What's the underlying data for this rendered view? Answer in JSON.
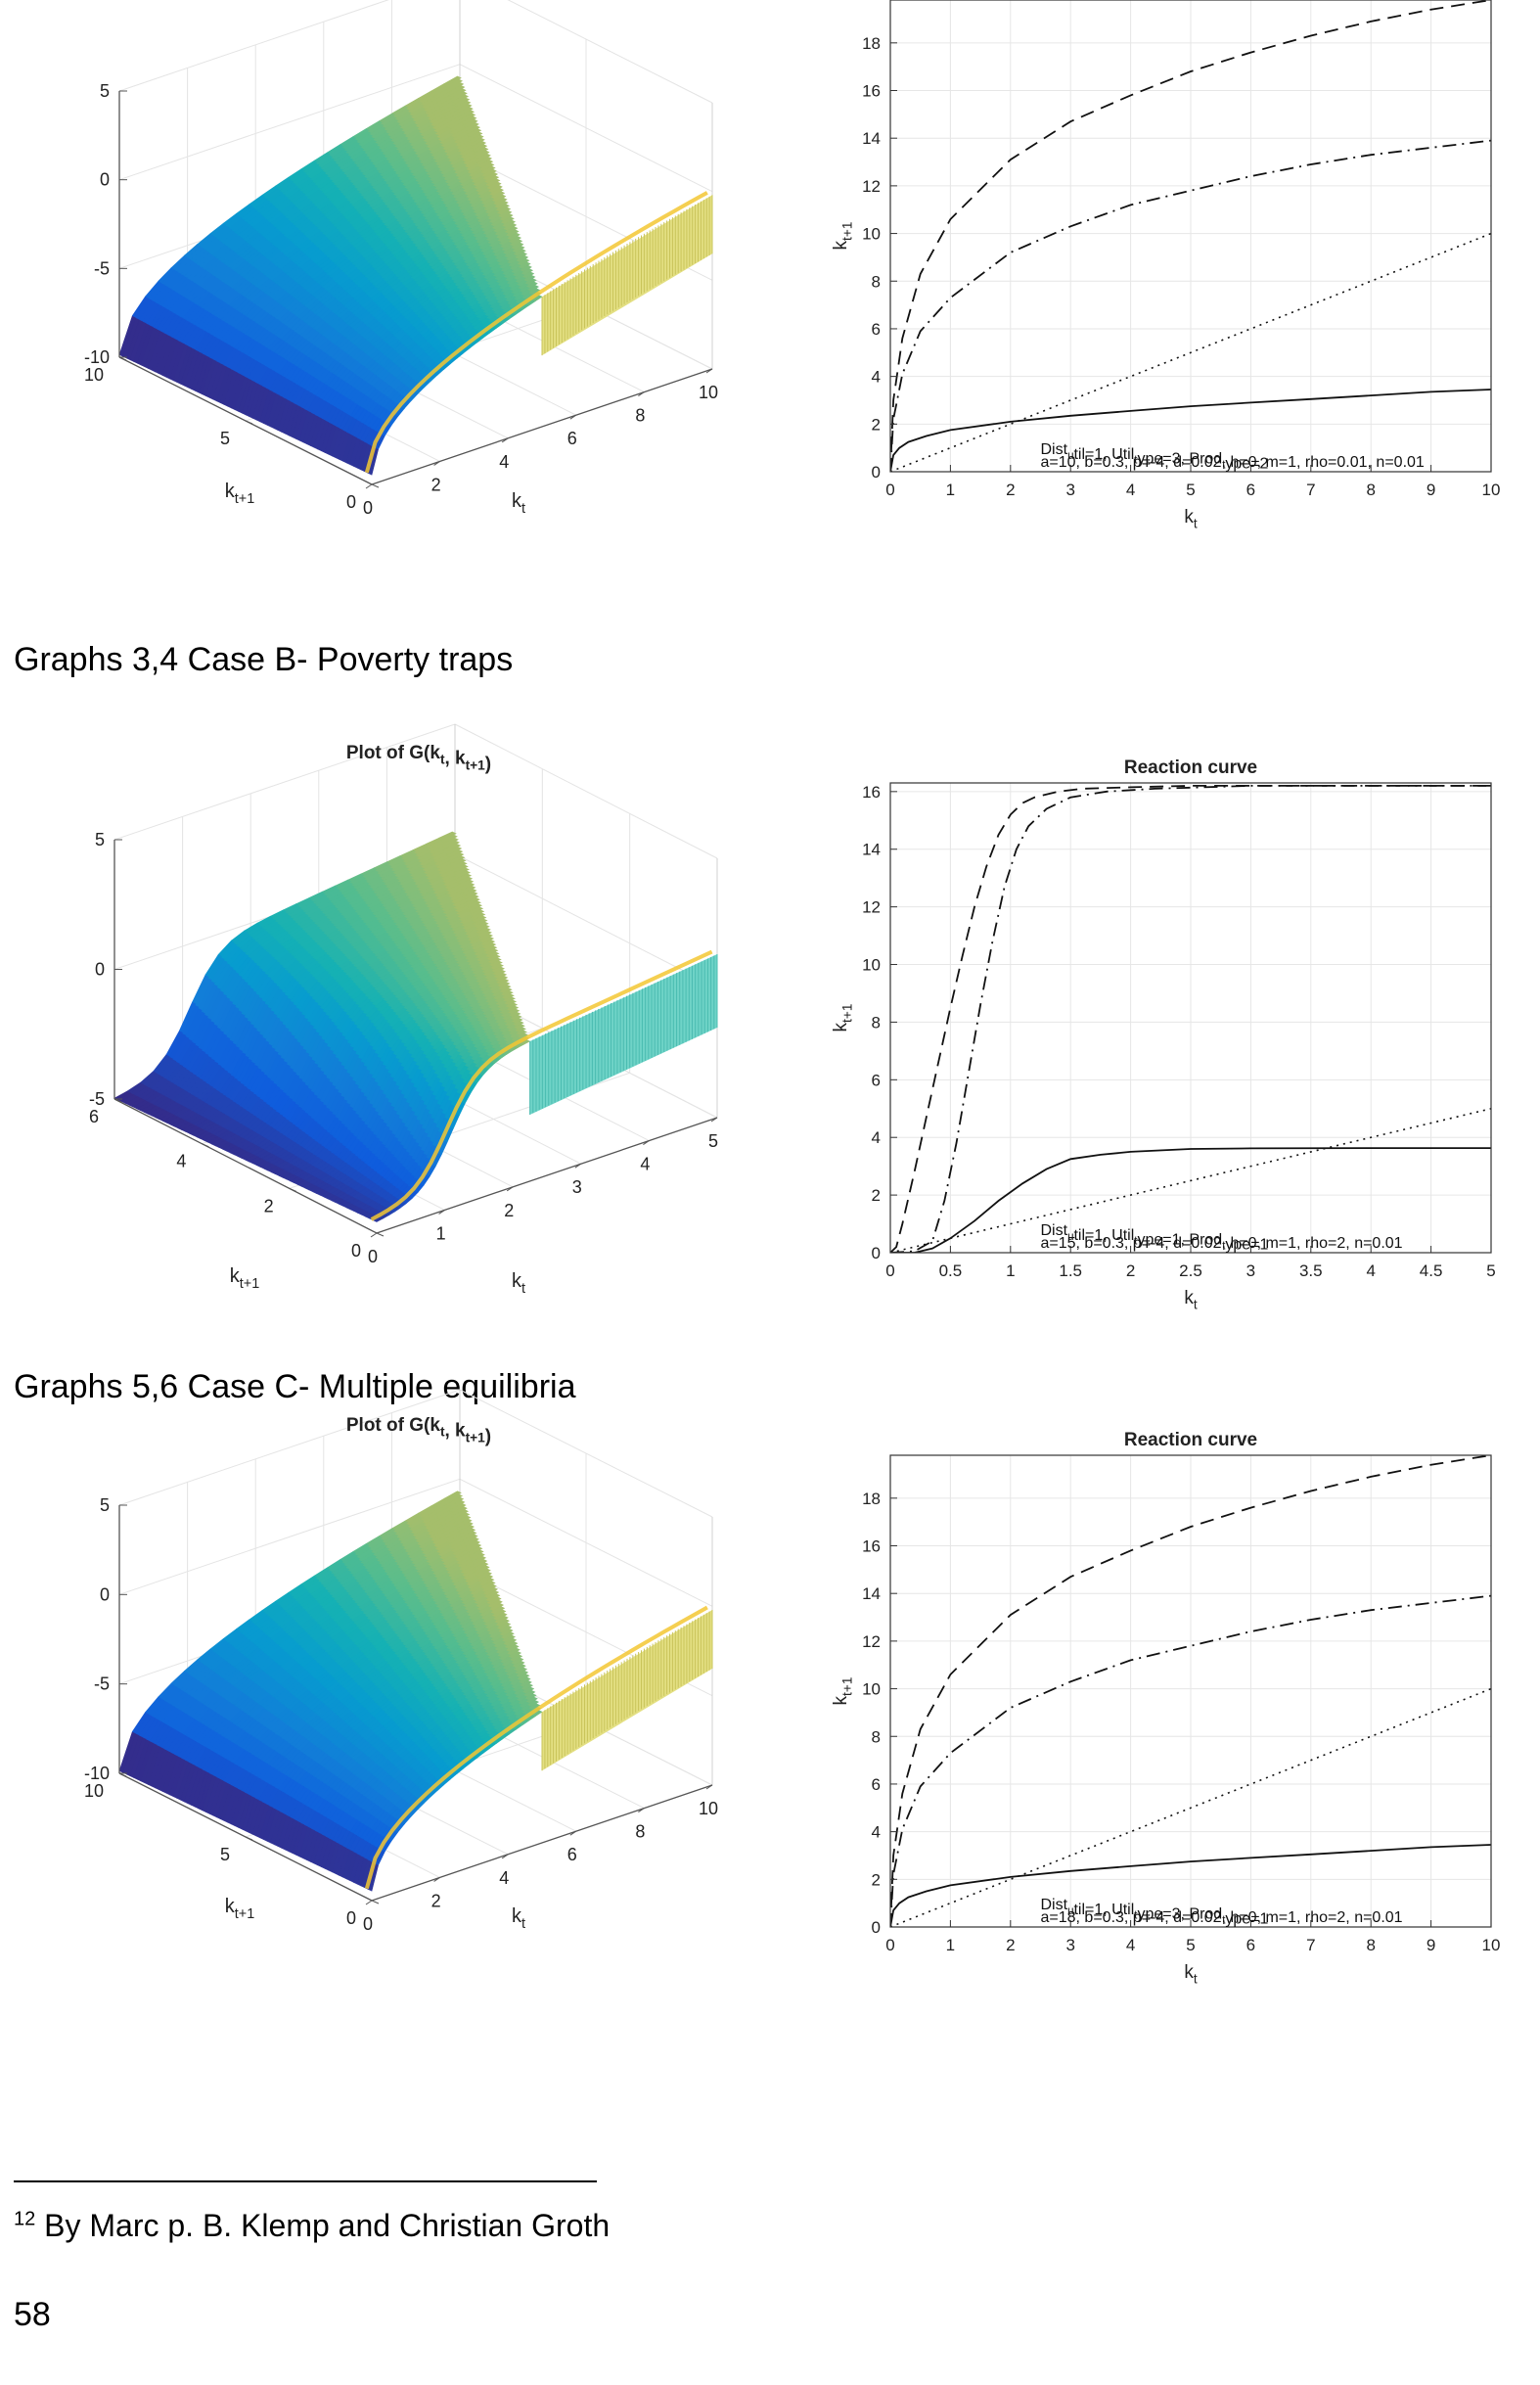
{
  "captions": {
    "case_b": "Graphs 3,4 Case B- Poverty traps",
    "case_c": "Graphs 5,6 Case C- Multiple equilibria"
  },
  "footnote": {
    "number": "12",
    "text": " By Marc p. B. Klemp and Christian Groth"
  },
  "page_number": "58",
  "chart_data": [
    {
      "id": "g1",
      "type": "surface",
      "title": "",
      "xlabel": "k_t",
      "ylabel": "k_{t+1}",
      "zlabel": "",
      "x_ticks": [
        "0",
        "2",
        "4",
        "6",
        "8",
        "10"
      ],
      "y_ticks": [
        "0",
        "5",
        "10"
      ],
      "z_ticks": [
        "-10",
        "-5",
        "0",
        "5"
      ],
      "x_range": [
        0,
        10
      ],
      "y_range": [
        0,
        10
      ],
      "z_range": [
        -10,
        5
      ],
      "colormap": "parula"
    },
    {
      "id": "r1",
      "type": "line",
      "title": "",
      "xlabel": "k_t",
      "ylabel": "k_{t+1}",
      "xlim": [
        0,
        10
      ],
      "ylim": [
        0,
        19.8
      ],
      "x_ticks": [
        "0",
        "1",
        "2",
        "3",
        "4",
        "5",
        "6",
        "7",
        "8",
        "9",
        "10"
      ],
      "y_ticks": [
        "0",
        "2",
        "4",
        "6",
        "8",
        "10",
        "12",
        "14",
        "16",
        "18"
      ],
      "annotation": [
        "Dist_util=1, Util_type=3, Prod_type=2",
        "a=10, b=0.3, p=-4, d=0.02, h=0, m=1, rho=0.01, n=0.01"
      ],
      "series": [
        {
          "style": "dashed",
          "x": [
            0,
            0.05,
            0.2,
            0.5,
            1,
            2,
            3,
            4,
            5,
            6,
            7,
            8,
            9,
            10
          ],
          "y": [
            0,
            3.0,
            5.6,
            8.3,
            10.6,
            13.1,
            14.7,
            15.8,
            16.8,
            17.6,
            18.3,
            18.9,
            19.4,
            19.8
          ]
        },
        {
          "style": "dashdot",
          "x": [
            0,
            0.05,
            0.2,
            0.5,
            1,
            2,
            3,
            4,
            5,
            6,
            7,
            8,
            9,
            10
          ],
          "y": [
            0,
            2.2,
            4.1,
            5.9,
            7.3,
            9.2,
            10.3,
            11.2,
            11.8,
            12.4,
            12.9,
            13.3,
            13.6,
            13.9
          ]
        },
        {
          "style": "dotted",
          "x": [
            0,
            10
          ],
          "y": [
            0,
            10
          ]
        },
        {
          "style": "solid",
          "x": [
            0,
            0.05,
            0.15,
            0.3,
            0.6,
            1,
            2,
            3,
            4,
            5,
            6,
            7,
            8,
            9,
            10
          ],
          "y": [
            0,
            0.7,
            1.0,
            1.25,
            1.5,
            1.75,
            2.1,
            2.35,
            2.55,
            2.75,
            2.9,
            3.05,
            3.2,
            3.35,
            3.45
          ]
        }
      ]
    },
    {
      "id": "g2",
      "type": "surface",
      "title": "Plot of G(k_t, k_{t+1})",
      "xlabel": "k_t",
      "ylabel": "k_{t+1}",
      "zlabel": "",
      "x_ticks": [
        "0",
        "1",
        "2",
        "3",
        "4",
        "5"
      ],
      "y_ticks": [
        "0",
        "2",
        "4",
        "6"
      ],
      "z_ticks": [
        "-5",
        "0",
        "5"
      ],
      "x_range": [
        0,
        5
      ],
      "y_range": [
        0,
        6
      ],
      "z_range": [
        -5,
        5
      ],
      "colormap": "parula"
    },
    {
      "id": "r2",
      "type": "line",
      "title": "Reaction curve",
      "xlabel": "k_t",
      "ylabel": "k_{t+1}",
      "xlim": [
        0,
        5
      ],
      "ylim": [
        0,
        16.3
      ],
      "x_ticks": [
        "0",
        "0.5",
        "1",
        "1.5",
        "2",
        "2.5",
        "3",
        "3.5",
        "4",
        "4.5",
        "5"
      ],
      "y_ticks": [
        "0",
        "2",
        "4",
        "6",
        "8",
        "10",
        "12",
        "14",
        "16"
      ],
      "annotation": [
        "Dist_util=1, Util_type=1, Prod_type=1",
        "a=15, b=0.3, p=-4, d=0.02, h=0, m=1, rho=2, n=0.01"
      ],
      "series": [
        {
          "style": "dashed",
          "x": [
            0,
            0.05,
            0.1,
            0.2,
            0.3,
            0.4,
            0.5,
            0.6,
            0.7,
            0.8,
            0.9,
            1.0,
            1.1,
            1.2,
            1.4,
            1.6,
            2,
            2.5,
            3,
            4,
            5
          ],
          "y": [
            0,
            0.2,
            1.0,
            2.8,
            4.7,
            6.6,
            8.5,
            10.3,
            12.0,
            13.4,
            14.5,
            15.2,
            15.6,
            15.8,
            16.0,
            16.1,
            16.15,
            16.2,
            16.2,
            16.2,
            16.2
          ]
        },
        {
          "style": "dashdot",
          "x": [
            0,
            0.2,
            0.35,
            0.45,
            0.55,
            0.65,
            0.75,
            0.85,
            0.95,
            1.05,
            1.15,
            1.3,
            1.5,
            1.8,
            2.2,
            3,
            4,
            5
          ],
          "y": [
            0,
            0.05,
            0.4,
            1.8,
            3.8,
            6.2,
            8.6,
            10.8,
            12.7,
            14.0,
            14.8,
            15.4,
            15.8,
            16.0,
            16.1,
            16.2,
            16.2,
            16.2
          ]
        },
        {
          "style": "dotted",
          "x": [
            0,
            5
          ],
          "y": [
            0,
            5
          ]
        },
        {
          "style": "solid",
          "x": [
            0,
            0.2,
            0.35,
            0.5,
            0.7,
            0.9,
            1.1,
            1.3,
            1.5,
            1.75,
            2,
            2.5,
            3,
            4,
            5
          ],
          "y": [
            0,
            0.0,
            0.15,
            0.5,
            1.1,
            1.8,
            2.4,
            2.9,
            3.25,
            3.4,
            3.5,
            3.6,
            3.62,
            3.63,
            3.63
          ]
        }
      ]
    },
    {
      "id": "g3",
      "type": "surface",
      "title": "Plot of G(k_t, k_{t+1})",
      "xlabel": "k_t",
      "ylabel": "k_{t+1}",
      "zlabel": "",
      "x_ticks": [
        "0",
        "2",
        "4",
        "6",
        "8",
        "10"
      ],
      "y_ticks": [
        "0",
        "5",
        "10"
      ],
      "z_ticks": [
        "-10",
        "-5",
        "0",
        "5"
      ],
      "x_range": [
        0,
        10
      ],
      "y_range": [
        0,
        10
      ],
      "z_range": [
        -10,
        5
      ],
      "colormap": "parula"
    },
    {
      "id": "r3",
      "type": "line",
      "title": "Reaction curve",
      "xlabel": "k_t",
      "ylabel": "k_{t+1}",
      "xlim": [
        0,
        10
      ],
      "ylim": [
        0,
        19.8
      ],
      "x_ticks": [
        "0",
        "1",
        "2",
        "3",
        "4",
        "5",
        "6",
        "7",
        "8",
        "9",
        "10"
      ],
      "y_ticks": [
        "0",
        "2",
        "4",
        "6",
        "8",
        "10",
        "12",
        "14",
        "16",
        "18"
      ],
      "annotation": [
        "Dist_util=1, Util_type=3, Prod_type=1",
        "a=18, b=0.3, p=-4, d=0.02, h=0, m=1, rho=2, n=0.01"
      ],
      "series": [
        {
          "style": "dashed",
          "x": [
            0,
            0.05,
            0.2,
            0.5,
            1,
            2,
            3,
            4,
            5,
            6,
            7,
            8,
            9,
            10
          ],
          "y": [
            0,
            3.0,
            5.6,
            8.3,
            10.6,
            13.1,
            14.7,
            15.8,
            16.8,
            17.6,
            18.3,
            18.9,
            19.4,
            19.8
          ]
        },
        {
          "style": "dashdot",
          "x": [
            0,
            0.05,
            0.2,
            0.5,
            1,
            2,
            3,
            4,
            5,
            6,
            7,
            8,
            9,
            10
          ],
          "y": [
            0,
            2.2,
            4.1,
            5.9,
            7.3,
            9.2,
            10.3,
            11.2,
            11.8,
            12.4,
            12.9,
            13.3,
            13.6,
            13.9
          ]
        },
        {
          "style": "dotted",
          "x": [
            0,
            10
          ],
          "y": [
            0,
            10
          ]
        },
        {
          "style": "solid",
          "x": [
            0,
            0.05,
            0.15,
            0.3,
            0.6,
            1,
            2,
            3,
            4,
            5,
            6,
            7,
            8,
            9,
            10
          ],
          "y": [
            0,
            0.7,
            1.0,
            1.25,
            1.5,
            1.75,
            2.1,
            2.35,
            2.55,
            2.75,
            2.9,
            3.05,
            3.2,
            3.35,
            3.45
          ]
        }
      ]
    }
  ]
}
